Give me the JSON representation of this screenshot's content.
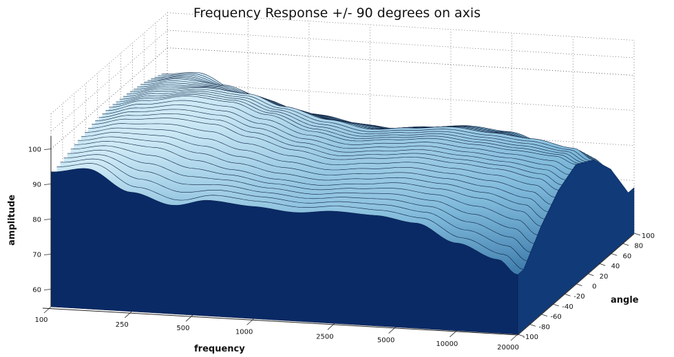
{
  "chart_data": {
    "type": "surface",
    "title": "Frequency Response +/- 90 degrees on axis",
    "xlabel": "frequency",
    "ylabel": "angle",
    "zlabel": "amplitude",
    "x_scale": "log",
    "x_ticks": [
      "100",
      "250",
      "500",
      "1000",
      "2500",
      "5000",
      "10000",
      "20000"
    ],
    "y_ticks": [
      "-100",
      "-80",
      "-60",
      "-40",
      "-20",
      "0",
      "20",
      "40",
      "60",
      "80",
      "100"
    ],
    "z_ticks": [
      "60",
      "70",
      "80",
      "90",
      "100"
    ],
    "xlim": [
      100,
      20000
    ],
    "ylim": [
      -100,
      100
    ],
    "zlim": [
      55,
      105
    ],
    "grid": true,
    "colormap": [
      "#0a2a66",
      "#1a5a90",
      "#4a90c0",
      "#bfe3f2"
    ],
    "series": [
      {
        "angle": -90,
        "frequency": [
          100,
          150,
          250,
          400,
          600,
          1000,
          1600,
          2500,
          4000,
          6300,
          10000,
          16000,
          20000
        ],
        "amplitude": [
          93.5,
          95,
          89,
          86,
          88,
          87,
          86,
          87,
          86.5,
          85,
          80,
          76,
          72
        ]
      },
      {
        "angle": -60,
        "frequency": [
          100,
          150,
          250,
          400,
          600,
          1000,
          1600,
          2500,
          4000,
          6300,
          10000,
          16000,
          20000
        ],
        "amplitude": [
          95.5,
          97,
          96,
          93,
          91,
          89,
          88,
          89,
          90,
          89,
          87,
          84,
          80
        ]
      },
      {
        "angle": -30,
        "frequency": [
          100,
          150,
          250,
          400,
          600,
          1000,
          1600,
          2500,
          4000,
          6300,
          10000,
          16000,
          20000
        ],
        "amplitude": [
          97,
          99,
          100,
          99,
          96,
          93,
          91,
          92,
          93,
          92,
          91,
          89,
          86
        ]
      },
      {
        "angle": 0,
        "frequency": [
          100,
          150,
          250,
          400,
          600,
          1000,
          1600,
          2500,
          4000,
          6300,
          10000,
          16000,
          20000
        ],
        "amplitude": [
          97.5,
          100,
          102,
          101,
          98,
          94,
          92,
          93,
          94,
          93,
          92,
          91,
          89
        ]
      },
      {
        "angle": 30,
        "frequency": [
          100,
          150,
          250,
          400,
          600,
          1000,
          1600,
          2500,
          4000,
          6300,
          10000,
          16000,
          20000
        ],
        "amplitude": [
          97,
          99,
          100,
          99,
          96,
          93,
          91,
          92,
          93,
          92,
          91,
          89,
          86
        ]
      },
      {
        "angle": 60,
        "frequency": [
          100,
          150,
          250,
          400,
          600,
          1000,
          1600,
          2500,
          4000,
          6300,
          10000,
          16000,
          20000
        ],
        "amplitude": [
          96,
          97.5,
          96.5,
          93,
          90,
          88,
          87,
          88,
          89,
          88,
          85,
          82,
          79
        ]
      },
      {
        "angle": 90,
        "frequency": [
          100,
          150,
          250,
          400,
          600,
          1000,
          1600,
          2500,
          4000,
          6300,
          10000,
          16000,
          20000
        ],
        "amplitude": [
          94,
          95,
          90,
          86,
          85,
          83,
          82,
          83,
          82,
          80,
          76,
          72,
          68
        ]
      }
    ]
  }
}
